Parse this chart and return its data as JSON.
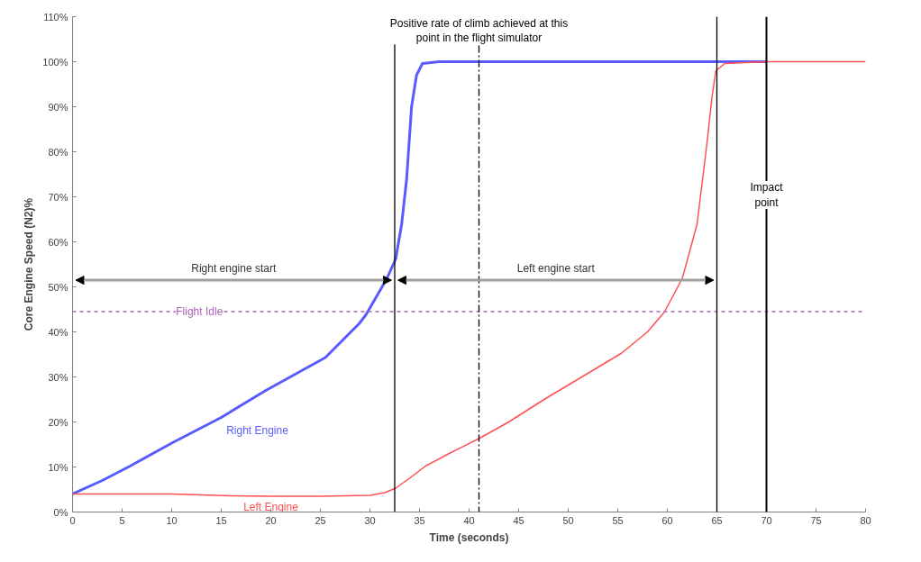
{
  "chart_data": {
    "type": "line",
    "xlabel": "Time (seconds)",
    "ylabel": "Core Engine Speed (N2)%",
    "series": [
      {
        "name": "Right Engine",
        "color": "#5a5aff",
        "x": [
          0,
          3,
          5.8,
          10,
          15,
          19.5,
          25.5,
          28.9,
          29.6,
          31.7,
          32.6,
          33.2,
          33.7,
          34.2,
          34.7,
          35.3,
          37,
          40,
          50,
          60,
          70
        ],
        "values": [
          4,
          7,
          10.2,
          15.3,
          21,
          27,
          34.3,
          41.8,
          43.8,
          51.8,
          56.2,
          63.9,
          73.9,
          90,
          97,
          99.6,
          100,
          100,
          100,
          100,
          100
        ]
      },
      {
        "name": "Left Engine",
        "color": "#ff5050",
        "x": [
          0,
          10,
          16,
          20,
          25,
          30,
          31.5,
          32.6,
          34,
          35.6,
          38,
          41,
          44,
          47.8,
          51,
          55.4,
          58,
          59.7,
          61.5,
          63,
          64,
          64.5,
          64.9,
          65.8,
          70,
          80
        ],
        "values": [
          4,
          4,
          3.6,
          3.5,
          3.5,
          3.7,
          4.3,
          5.3,
          7.5,
          10.2,
          13,
          16.3,
          20,
          25.3,
          29.5,
          35.3,
          40,
          44.4,
          51.8,
          63.9,
          81.9,
          92,
          98,
          99.6,
          100,
          100
        ]
      }
    ],
    "xlim": [
      0,
      80
    ],
    "xticks": [
      0,
      5,
      10,
      15,
      20,
      25,
      30,
      35,
      40,
      45,
      50,
      55,
      60,
      65,
      70,
      75,
      80
    ],
    "ylim": [
      0,
      110
    ],
    "yticks": [
      {
        "value": 0,
        "label": "0%"
      },
      {
        "value": 10,
        "label": "10%"
      },
      {
        "value": 20,
        "label": "20%"
      },
      {
        "value": 30,
        "label": "30%"
      },
      {
        "value": 40,
        "label": "40%"
      },
      {
        "value": 50,
        "label": "50%"
      },
      {
        "value": 60,
        "label": "60%"
      },
      {
        "value": 70,
        "label": "70%"
      },
      {
        "value": 80,
        "label": "80%"
      },
      {
        "value": 90,
        "label": "90%"
      },
      {
        "value": 100,
        "label": "100%"
      },
      {
        "value": 110,
        "label": "110%"
      }
    ],
    "ref_lines": [
      {
        "axis": "y",
        "value": 44.5,
        "label": "Flight Idle",
        "color": "#b060c0",
        "line_style": "dashed"
      },
      {
        "axis": "x",
        "value": 32.5,
        "label": null,
        "color": "#000000",
        "line_style": "solid"
      },
      {
        "axis": "x",
        "value": 41,
        "label": "Positive rate of climb achieved at this point in the flight simulator",
        "color": "#000000",
        "line_style": "dashdot"
      },
      {
        "axis": "x",
        "value": 65,
        "label": null,
        "color": "#000000",
        "line_style": "solid"
      },
      {
        "axis": "x",
        "value": 70,
        "label": "Impact point",
        "color": "#000000",
        "line_style": "solid"
      }
    ],
    "annotations": [
      "Right engine start",
      "Left engine start"
    ],
    "grid": false,
    "marker": "none",
    "line_style": "solid"
  }
}
